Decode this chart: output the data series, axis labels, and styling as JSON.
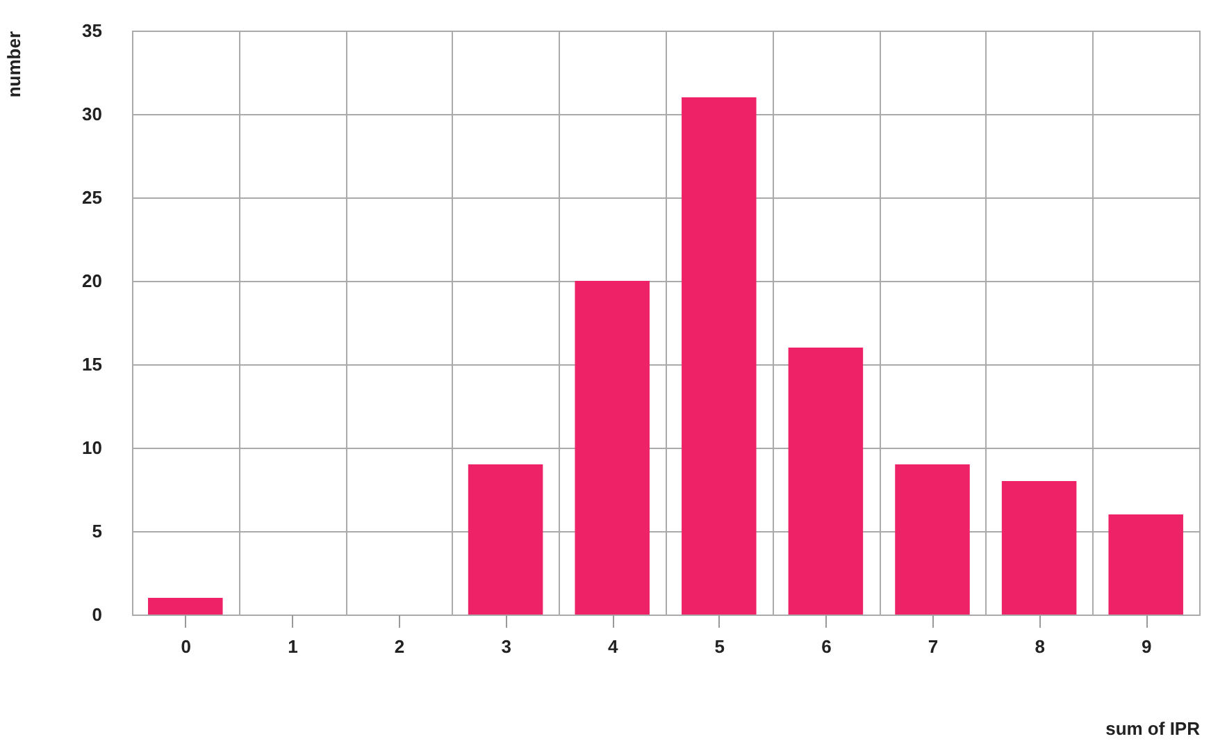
{
  "chart_data": {
    "type": "bar",
    "xlabel": "sum of IPR",
    "ylabel": "number",
    "categories": [
      "0",
      "1",
      "2",
      "3",
      "4",
      "5",
      "6",
      "7",
      "8",
      "9"
    ],
    "values": [
      1,
      0,
      0,
      9,
      20,
      31,
      16,
      9,
      8,
      6
    ],
    "color": "#ee2266",
    "ylim": [
      0,
      35
    ],
    "yticks": [
      0,
      5,
      10,
      15,
      20,
      25,
      30,
      35
    ],
    "grid": true
  }
}
